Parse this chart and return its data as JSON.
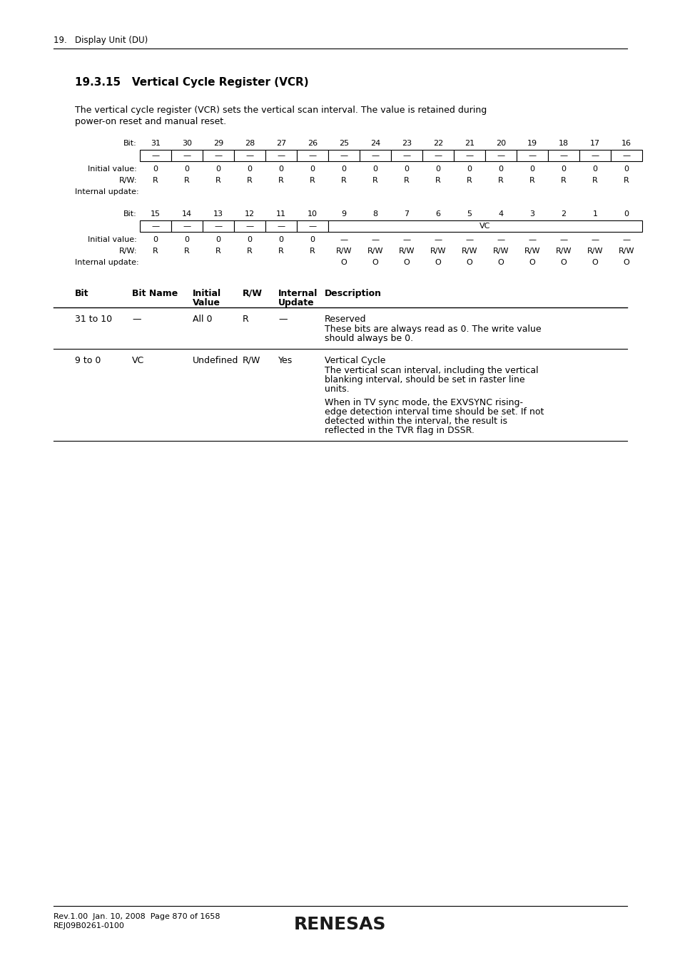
{
  "page_header": "19.   Display Unit (DU)",
  "section_title": "19.3.15   Vertical Cycle Register (VCR)",
  "intro_line1": "The vertical cycle register (VCR) sets the vertical scan interval. The value is retained during",
  "intro_line2": "power-on reset and manual reset.",
  "row1_bits": [
    "31",
    "30",
    "29",
    "28",
    "27",
    "26",
    "25",
    "24",
    "23",
    "22",
    "21",
    "20",
    "19",
    "18",
    "17",
    "16"
  ],
  "row1_init": [
    "0",
    "0",
    "0",
    "0",
    "0",
    "0",
    "0",
    "0",
    "0",
    "0",
    "0",
    "0",
    "0",
    "0",
    "0",
    "0"
  ],
  "row1_rw": [
    "R",
    "R",
    "R",
    "R",
    "R",
    "R",
    "R",
    "R",
    "R",
    "R",
    "R",
    "R",
    "R",
    "R",
    "R",
    "R"
  ],
  "row2_bits": [
    "15",
    "14",
    "13",
    "12",
    "11",
    "10",
    "9",
    "8",
    "7",
    "6",
    "5",
    "4",
    "3",
    "2",
    "1",
    "0"
  ],
  "row2_init_left": [
    "0",
    "0",
    "0",
    "0",
    "0",
    "0"
  ],
  "row2_init_right": [
    "—",
    "—",
    "—",
    "—",
    "—",
    "—",
    "—",
    "—",
    "—",
    "—"
  ],
  "row2_rw_left": [
    "R",
    "R",
    "R",
    "R",
    "R",
    "R"
  ],
  "row2_rw_right": [
    "R/W",
    "R/W",
    "R/W",
    "R/W",
    "R/W",
    "R/W",
    "R/W",
    "R/W",
    "R/W",
    "R/W"
  ],
  "row2_update_right": [
    "O",
    "O",
    "O",
    "O",
    "O",
    "O",
    "O",
    "O",
    "O",
    "O"
  ],
  "table_rows": [
    {
      "bit": "31 to 10",
      "name": "—",
      "init": "All 0",
      "rw": "R",
      "update": "—",
      "desc_short": "Reserved",
      "desc_long": [
        "These bits are always read as 0. The write value",
        "should always be 0."
      ]
    },
    {
      "bit": "9 to 0",
      "name": "VC",
      "init": "Undefined",
      "rw": "R/W",
      "update": "Yes",
      "desc_short": "Vertical Cycle",
      "desc_long": [
        "The vertical scan interval, including the vertical",
        "blanking interval, should be set in raster line",
        "units.",
        "",
        "When in TV sync mode, the EXVSYNC rising-",
        "edge detection interval time should be set. If not",
        "detected within the interval, the result is",
        "reflected in the TVR flag in DSSR."
      ]
    }
  ],
  "footer_line1": "Rev.1.00  Jan. 10, 2008  Page 870 of 1658",
  "footer_line2": "REJ09B0261-0100",
  "footer_logo": "RENESAS",
  "bg_color": "#ffffff"
}
